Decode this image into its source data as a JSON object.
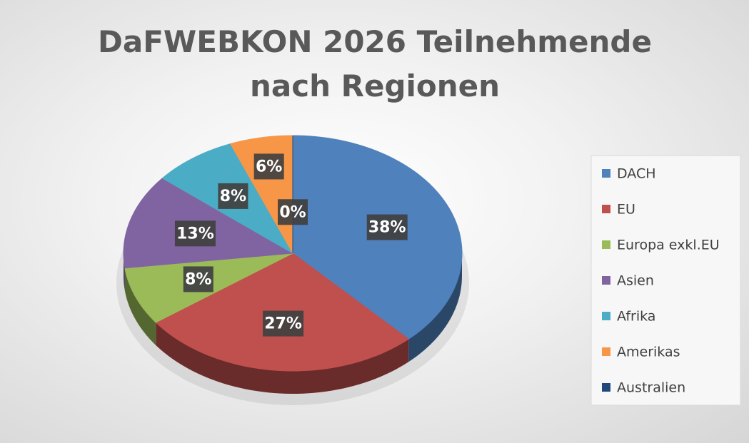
{
  "chart_data": {
    "type": "pie",
    "title": "DaFWEBKON 2026 Teilnehmende nach Regionen",
    "categories": [
      "DACH",
      "EU",
      "Europa exkl.EU",
      "Asien",
      "Afrika",
      "Amerikas",
      "Australien"
    ],
    "values": [
      38,
      27,
      8,
      13,
      8,
      6,
      0
    ],
    "value_labels": [
      "38%",
      "27%",
      "8%",
      "13%",
      "8%",
      "6%",
      "0%"
    ],
    "colors": [
      "#4f81bd",
      "#c0504d",
      "#9bbb59",
      "#8064a2",
      "#4bacc6",
      "#f79646",
      "#1f497d"
    ],
    "legend": "right"
  }
}
